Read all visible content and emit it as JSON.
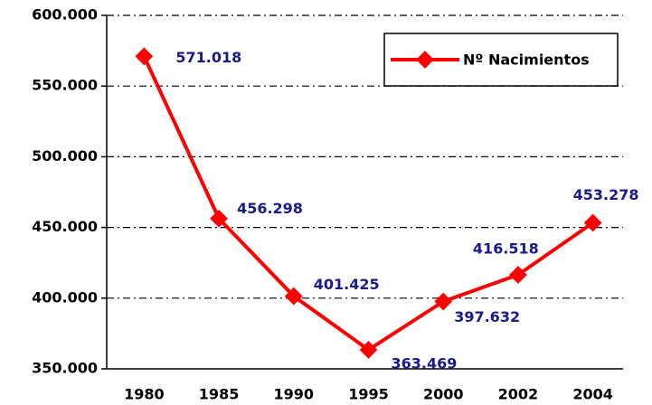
{
  "chart_data": {
    "type": "line",
    "categories": [
      "1980",
      "1985",
      "1990",
      "1995",
      "2000",
      "2002",
      "2004"
    ],
    "series": [
      {
        "name": "Nº Nacimientos",
        "color": "#ff0000",
        "values": [
          571018,
          456298,
          401425,
          363469,
          397632,
          416518,
          453278
        ],
        "value_labels": [
          "571.018",
          "456.298",
          "401.425",
          "363.469",
          "397.632",
          "416.518",
          "453.278"
        ]
      }
    ],
    "ylim": [
      350000,
      600000
    ],
    "yticks": [
      {
        "value": 350000,
        "label": "350.000"
      },
      {
        "value": 400000,
        "label": "400.000"
      },
      {
        "value": 450000,
        "label": "450.000"
      },
      {
        "value": 500000,
        "label": "500.000"
      },
      {
        "value": 550000,
        "label": "550.000"
      },
      {
        "value": 600000,
        "label": "600.000"
      }
    ],
    "grid": true,
    "legend": "upper right"
  }
}
